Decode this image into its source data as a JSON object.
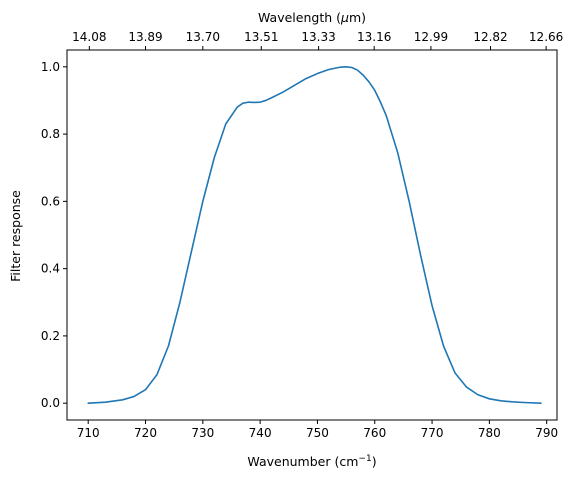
{
  "chart_data": {
    "type": "line",
    "xlabel": "Wavenumber (cm",
    "xlabel_sup": "−1",
    "xlabel_close": ")",
    "ylabel": "Filter response",
    "top_xlabel_pre": "Wavelength (",
    "top_xlabel_mu": "μ",
    "top_xlabel_post": "m)",
    "xlim": [
      706.3,
      791.8
    ],
    "ylim": [
      -0.05,
      1.05
    ],
    "x_ticks": [
      710,
      720,
      730,
      740,
      750,
      760,
      770,
      780,
      790
    ],
    "x_tick_labels": [
      "710",
      "720",
      "730",
      "740",
      "750",
      "760",
      "770",
      "780",
      "790"
    ],
    "y_ticks": [
      0.0,
      0.2,
      0.4,
      0.6,
      0.8,
      1.0
    ],
    "y_tick_labels": [
      "0.0",
      "0.2",
      "0.4",
      "0.6",
      "0.8",
      "1.0"
    ],
    "top_ticks": [
      710.2,
      720,
      730,
      740.2,
      750.2,
      759.9,
      769.8,
      780.2,
      789.9
    ],
    "top_tick_labels": [
      "14.08",
      "13.89",
      "13.70",
      "13.51",
      "13.33",
      "13.16",
      "12.99",
      "12.82",
      "12.66"
    ],
    "series": [
      {
        "color": "#1f77b4",
        "x": [
          710,
          713,
          716,
          718,
          720,
          722,
          724,
          726,
          728,
          730,
          732,
          734,
          736,
          737,
          738,
          739,
          740,
          741,
          742,
          744,
          746,
          748,
          750,
          752,
          754,
          755,
          756,
          757,
          758,
          759,
          760,
          761,
          762,
          764,
          766,
          768,
          770,
          772,
          774,
          776,
          778,
          780,
          782,
          784,
          786,
          789
        ],
        "y": [
          0.0,
          0.003,
          0.01,
          0.02,
          0.04,
          0.085,
          0.17,
          0.3,
          0.45,
          0.6,
          0.73,
          0.83,
          0.88,
          0.892,
          0.895,
          0.894,
          0.895,
          0.9,
          0.908,
          0.925,
          0.945,
          0.965,
          0.98,
          0.992,
          0.999,
          1.0,
          0.998,
          0.99,
          0.975,
          0.955,
          0.93,
          0.895,
          0.855,
          0.745,
          0.6,
          0.44,
          0.29,
          0.17,
          0.09,
          0.048,
          0.025,
          0.013,
          0.007,
          0.004,
          0.002,
          0.0
        ]
      }
    ]
  }
}
